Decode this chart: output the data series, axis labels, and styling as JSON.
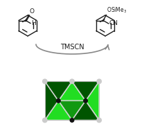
{
  "background_color": "#ffffff",
  "arrow_color": "#888888",
  "tmscn_label": "TMSCN",
  "tmscn_fontsize": 7,
  "mol_color": "#1a1a1a",
  "polyhedra": {
    "light_green": "#22dd22",
    "mid_green": "#119911",
    "dark_green": "#005500",
    "node_white": "#cccccc",
    "node_black": "#111111",
    "edge_color": "#bbbbbb"
  }
}
